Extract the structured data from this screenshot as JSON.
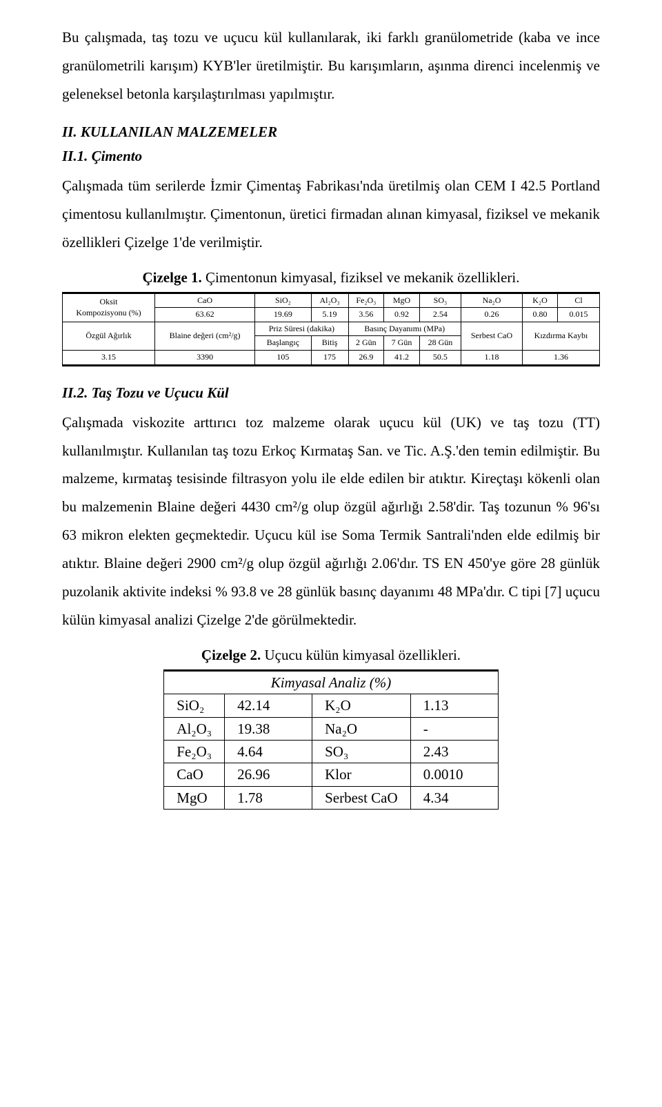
{
  "para1": "Bu çalışmada, taş tozu ve uçucu kül kullanılarak, iki farklı granülometride (kaba ve ince granülometrili karışım) KYB'ler üretilmiştir. Bu karışımların, aşınma direnci incelenmiş ve geleneksel betonla karşılaştırılması yapılmıştır.",
  "sec2_title": "II. KULLANILAN MALZEMELER",
  "sec21_title": "II.1. Çimento",
  "para2": "Çalışmada tüm serilerde İzmir Çimentaş Fabrikası'nda üretilmiş olan CEM I 42.5 Portland çimentosu kullanılmıştır. Çimentonun, üretici firmadan alınan kimyasal, fiziksel ve mekanik özellikleri Çizelge 1'de verilmiştir.",
  "table1_caption_bold": "Çizelge 1.",
  "table1_caption_rest": " Çimentonun kimyasal, fiziksel ve mekanik özellikleri.",
  "cement": {
    "row1_label": "Oksit",
    "row1_sub": "Kompozisyonu (%)",
    "oxides": [
      "CaO",
      "SiO₂",
      "Al₂O₃",
      "Fe₂O₃",
      "MgO",
      "SO₃",
      "Na₂O",
      "K₂O",
      "Cl"
    ],
    "oxide_vals": [
      "63.62",
      "19.69",
      "5.19",
      "3.56",
      "0.92",
      "2.54",
      "0.26",
      "0.80",
      "0.015"
    ],
    "row3_label": "Özgül Ağırlık",
    "blaine_label": "Blaine değeri (cm²/g)",
    "priz_label": "Priz Süresi (dakika)",
    "basinc_label": "Basınç Dayanımı (MPa)",
    "serbest_label": "Serbest CaO",
    "kizdirma_label": "Kızdırma Kaybı",
    "baslangic": "Başlangıç",
    "bitis": "Bitiş",
    "g2": "2 Gün",
    "g7": "7 Gün",
    "g28": "28 Gün",
    "vals": [
      "3.15",
      "3390",
      "105",
      "175",
      "26.9",
      "41.2",
      "50.5",
      "1.18",
      "1.36"
    ]
  },
  "sec22_title": "II.2. Taş Tozu ve Uçucu Kül",
  "para3": "Çalışmada viskozite arttırıcı toz malzeme olarak uçucu kül (UK) ve taş tozu (TT) kullanılmıştır. Kullanılan taş tozu Erkoç Kırmataş San. ve Tic. A.Ş.'den temin edilmiştir. Bu malzeme, kırmataş tesisinde filtrasyon yolu ile elde edilen bir atıktır. Kireçtaşı kökenli olan bu malzemenin Blaine değeri 4430 cm²/g olup özgül ağırlığı 2.58'dir. Taş tozunun % 96'sı 63 mikron elekten geçmektedir. Uçucu kül ise Soma Termik Santrali'nden elde edilmiş bir atıktır. Blaine değeri 2900 cm²/g olup özgül ağırlığı 2.06'dır. TS EN 450'ye göre 28 günlük puzolanik aktivite indeksi % 93.8 ve 28 günlük basınç dayanımı 48 MPa'dır. C tipi [7] uçucu külün kimyasal analizi Çizelge 2'de görülmektedir.",
  "table2_caption_bold": "Çizelge 2.",
  "table2_caption_rest": " Uçucu külün kimyasal özellikleri.",
  "chem": {
    "header": "Kimyasal Analiz (%)",
    "rows": [
      [
        "SiO₂",
        "42.14",
        "K₂O",
        "1.13"
      ],
      [
        "Al₂O₃",
        "19.38",
        "Na₂O",
        "-"
      ],
      [
        "Fe₂O₃",
        "4.64",
        "SO₃",
        "2.43"
      ],
      [
        "CaO",
        "26.96",
        "Klor",
        "0.0010"
      ],
      [
        "MgO",
        "1.78",
        "Serbest CaO",
        "4.34"
      ]
    ]
  }
}
